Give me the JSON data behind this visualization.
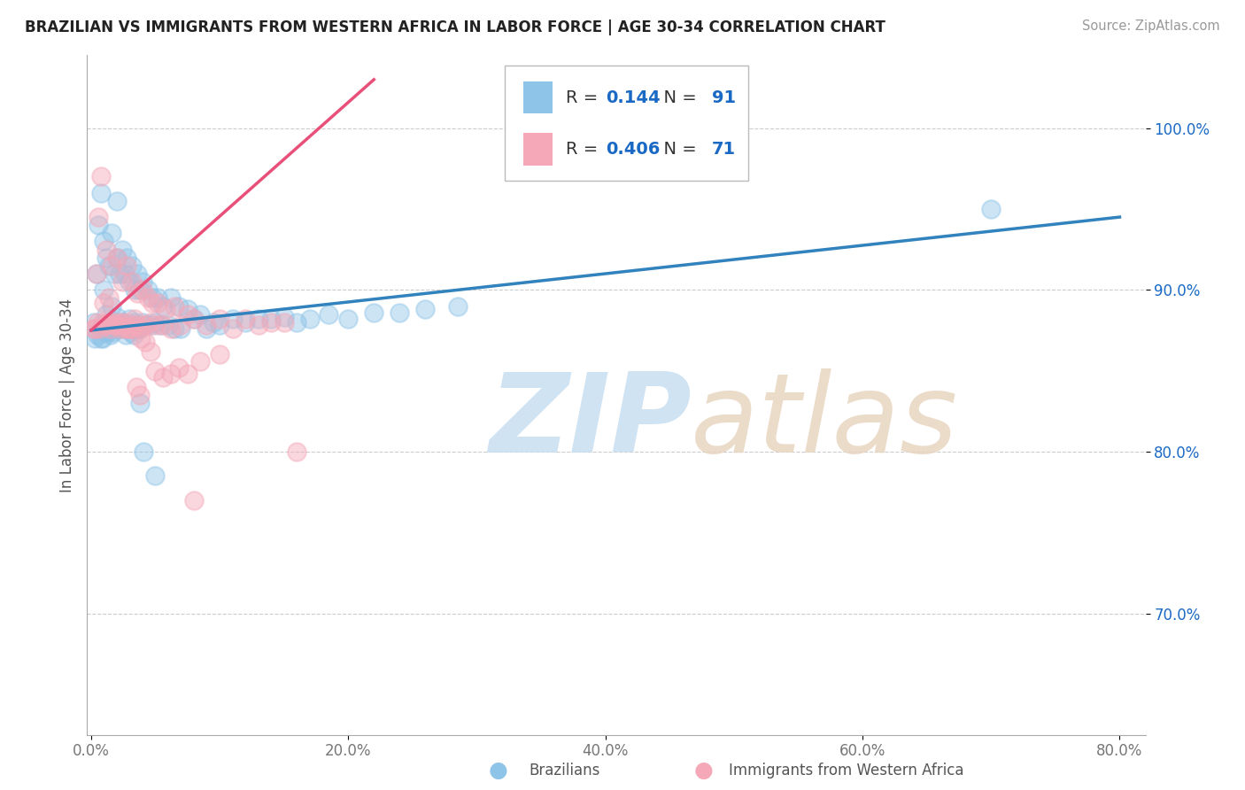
{
  "title": "BRAZILIAN VS IMMIGRANTS FROM WESTERN AFRICA IN LABOR FORCE | AGE 30-34 CORRELATION CHART",
  "source": "Source: ZipAtlas.com",
  "ylabel": "In Labor Force | Age 30-34",
  "xlim": [
    -0.003,
    0.82
  ],
  "ylim": [
    0.625,
    1.045
  ],
  "xtick_labels": [
    "0.0%",
    "20.0%",
    "40.0%",
    "60.0%",
    "80.0%"
  ],
  "xtick_values": [
    0.0,
    0.2,
    0.4,
    0.6,
    0.8
  ],
  "ytick_labels": [
    "70.0%",
    "80.0%",
    "90.0%",
    "100.0%"
  ],
  "ytick_values": [
    0.7,
    0.8,
    0.9,
    1.0
  ],
  "blue_color": "#8ec4e8",
  "pink_color": "#f4a8b8",
  "blue_line_color": "#3182bd",
  "pink_line_color": "#e8507a",
  "legend_R_blue": "0.144",
  "legend_N_blue": "91",
  "legend_R_pink": "0.406",
  "legend_N_pink": "71",
  "legend_color": "#1a69c4",
  "blue_trend_x": [
    0.0,
    0.8
  ],
  "blue_trend_y": [
    0.875,
    0.945
  ],
  "pink_trend_x": [
    0.0,
    0.22
  ],
  "pink_trend_y": [
    0.875,
    1.03
  ],
  "blue_scatter_x": [
    0.002,
    0.004,
    0.006,
    0.008,
    0.008,
    0.01,
    0.01,
    0.012,
    0.012,
    0.014,
    0.014,
    0.016,
    0.016,
    0.018,
    0.018,
    0.02,
    0.02,
    0.02,
    0.022,
    0.022,
    0.024,
    0.024,
    0.026,
    0.026,
    0.028,
    0.028,
    0.03,
    0.03,
    0.032,
    0.032,
    0.034,
    0.034,
    0.036,
    0.036,
    0.038,
    0.038,
    0.04,
    0.04,
    0.042,
    0.044,
    0.046,
    0.048,
    0.05,
    0.052,
    0.054,
    0.056,
    0.06,
    0.062,
    0.065,
    0.068,
    0.07,
    0.075,
    0.08,
    0.085,
    0.09,
    0.095,
    0.1,
    0.11,
    0.12,
    0.13,
    0.14,
    0.15,
    0.16,
    0.17,
    0.185,
    0.2,
    0.22,
    0.24,
    0.26,
    0.285,
    0.003,
    0.005,
    0.007,
    0.009,
    0.011,
    0.013,
    0.015,
    0.017,
    0.019,
    0.021,
    0.023,
    0.025,
    0.027,
    0.029,
    0.031,
    0.033,
    0.035,
    0.038,
    0.041,
    0.05,
    0.7
  ],
  "blue_scatter_y": [
    0.88,
    0.91,
    0.94,
    0.96,
    0.87,
    0.9,
    0.93,
    0.885,
    0.92,
    0.875,
    0.915,
    0.89,
    0.935,
    0.878,
    0.91,
    0.883,
    0.92,
    0.955,
    0.876,
    0.91,
    0.88,
    0.925,
    0.876,
    0.91,
    0.878,
    0.92,
    0.882,
    0.905,
    0.876,
    0.915,
    0.88,
    0.9,
    0.878,
    0.91,
    0.876,
    0.9,
    0.88,
    0.905,
    0.878,
    0.9,
    0.878,
    0.895,
    0.88,
    0.895,
    0.878,
    0.89,
    0.878,
    0.895,
    0.876,
    0.89,
    0.876,
    0.888,
    0.882,
    0.885,
    0.876,
    0.88,
    0.878,
    0.882,
    0.88,
    0.882,
    0.882,
    0.883,
    0.88,
    0.882,
    0.885,
    0.882,
    0.886,
    0.886,
    0.888,
    0.89,
    0.87,
    0.872,
    0.876,
    0.87,
    0.874,
    0.874,
    0.872,
    0.874,
    0.876,
    0.876,
    0.878,
    0.878,
    0.872,
    0.876,
    0.874,
    0.872,
    0.876,
    0.83,
    0.8,
    0.785,
    0.95
  ],
  "pink_scatter_x": [
    0.002,
    0.004,
    0.006,
    0.008,
    0.01,
    0.012,
    0.014,
    0.016,
    0.018,
    0.02,
    0.022,
    0.024,
    0.026,
    0.028,
    0.03,
    0.032,
    0.034,
    0.036,
    0.038,
    0.04,
    0.042,
    0.044,
    0.046,
    0.048,
    0.05,
    0.052,
    0.055,
    0.058,
    0.062,
    0.065,
    0.07,
    0.075,
    0.08,
    0.09,
    0.1,
    0.11,
    0.12,
    0.13,
    0.14,
    0.15,
    0.003,
    0.005,
    0.007,
    0.009,
    0.011,
    0.013,
    0.015,
    0.017,
    0.019,
    0.021,
    0.023,
    0.025,
    0.027,
    0.029,
    0.031,
    0.033,
    0.036,
    0.039,
    0.042,
    0.046,
    0.05,
    0.056,
    0.062,
    0.068,
    0.075,
    0.085,
    0.1,
    0.035,
    0.038,
    0.16,
    0.08
  ],
  "pink_scatter_y": [
    0.876,
    0.91,
    0.945,
    0.97,
    0.892,
    0.925,
    0.895,
    0.915,
    0.88,
    0.92,
    0.88,
    0.905,
    0.88,
    0.915,
    0.876,
    0.905,
    0.882,
    0.898,
    0.876,
    0.9,
    0.878,
    0.895,
    0.88,
    0.892,
    0.878,
    0.892,
    0.878,
    0.888,
    0.876,
    0.89,
    0.878,
    0.885,
    0.882,
    0.878,
    0.882,
    0.876,
    0.882,
    0.878,
    0.88,
    0.88,
    0.876,
    0.88,
    0.876,
    0.88,
    0.878,
    0.88,
    0.876,
    0.878,
    0.878,
    0.878,
    0.876,
    0.878,
    0.876,
    0.876,
    0.876,
    0.878,
    0.878,
    0.87,
    0.868,
    0.862,
    0.85,
    0.846,
    0.848,
    0.852,
    0.848,
    0.856,
    0.86,
    0.84,
    0.835,
    0.8,
    0.77
  ]
}
